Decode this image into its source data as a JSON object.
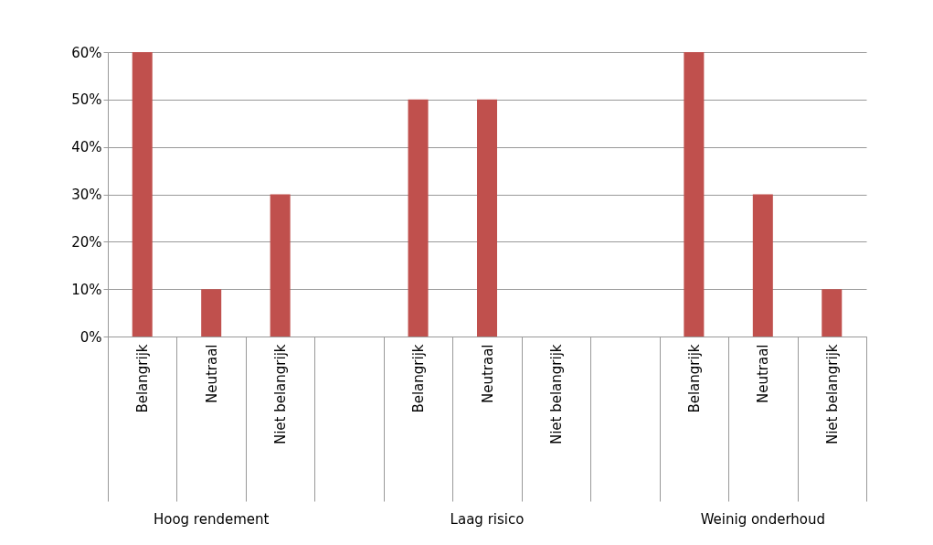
{
  "chart_data": {
    "type": "bar",
    "categories": [
      "Belangrijk",
      "Neutraal",
      "Niet belangrijk",
      null,
      "Belangrijk",
      "Neutraal",
      "Niet belangrijk",
      null,
      "Belangrijk",
      "Neutraal",
      "Niet belangrijk"
    ],
    "values": [
      60,
      10,
      30,
      null,
      50,
      50,
      0,
      null,
      60,
      30,
      10
    ],
    "color": "#c0504d",
    "ylim": [
      0,
      60
    ],
    "yticks": [
      {
        "value": 0,
        "label": "0%"
      },
      {
        "value": 10,
        "label": "10%"
      },
      {
        "value": 20,
        "label": "20%"
      },
      {
        "value": 30,
        "label": "30%"
      },
      {
        "value": 40,
        "label": "40%"
      },
      {
        "value": 50,
        "label": "50%"
      },
      {
        "value": 60,
        "label": "60%"
      }
    ],
    "grid": "y",
    "annotations": [
      "Hoog rendement",
      "Laag risico",
      "Weinig onderhoud"
    ]
  }
}
